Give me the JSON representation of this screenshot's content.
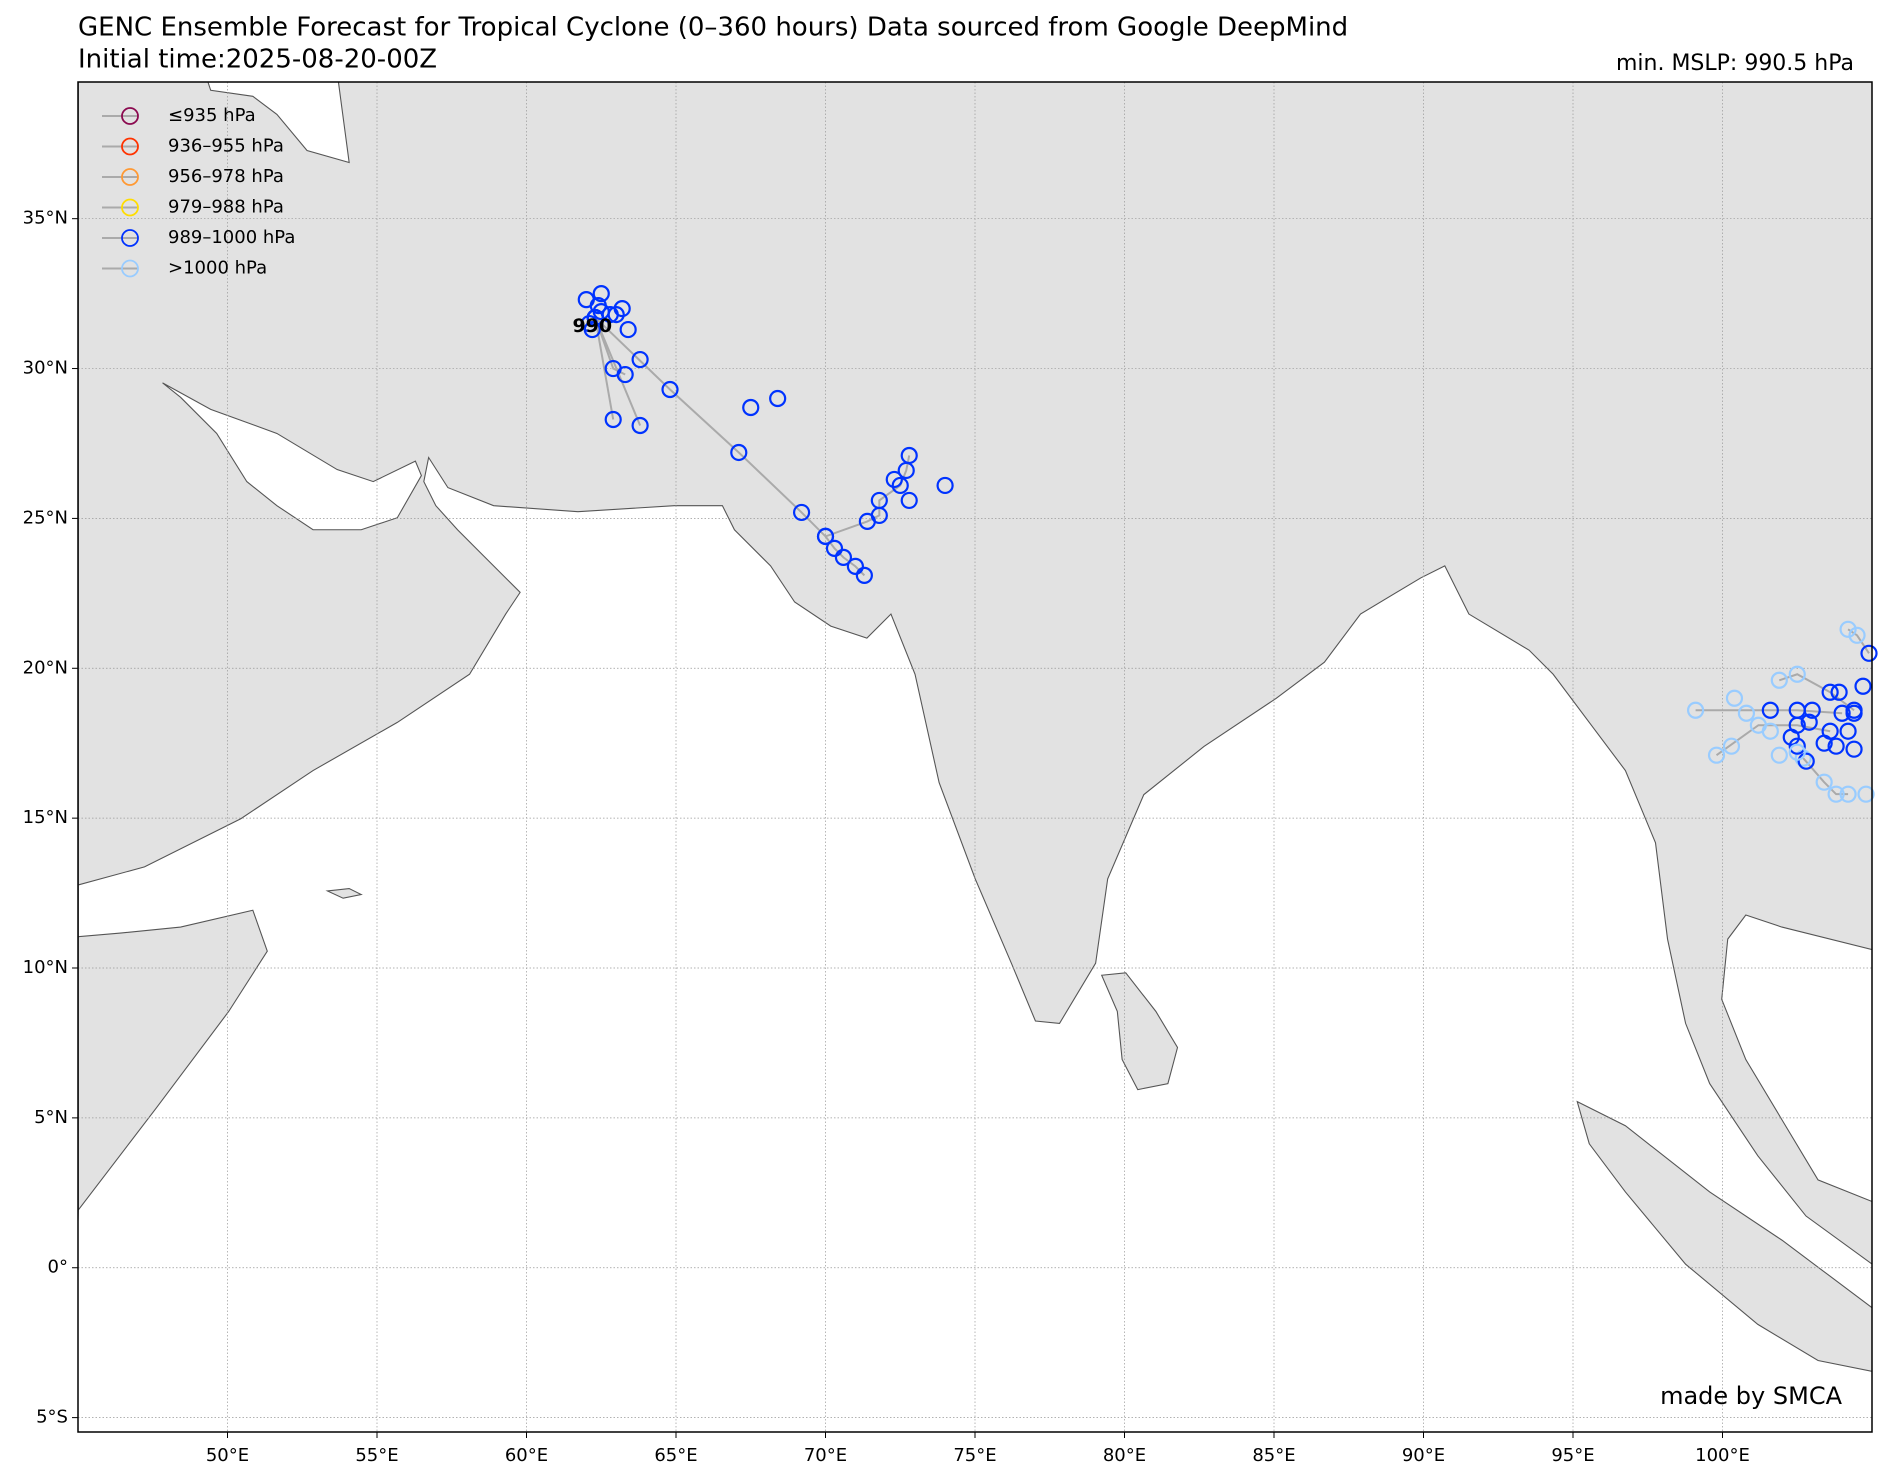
{
  "chart_data": {
    "type": "track-map",
    "title": "GENC Ensemble Forecast for Tropical Cyclone (0–360 hours) Data sourced from Google DeepMind",
    "subtitle": "Initial time:2025-08-20-00Z",
    "summary": "min. MSLP: 990.5 hPa",
    "credit": "made by SMCA",
    "xlim": [
      45,
      105
    ],
    "ylim": [
      -5.48,
      39.56
    ],
    "grid": true,
    "xticks": [
      {
        "value": 50,
        "label": "50°E"
      },
      {
        "value": 55,
        "label": "55°E"
      },
      {
        "value": 60,
        "label": "60°E"
      },
      {
        "value": 65,
        "label": "65°E"
      },
      {
        "value": 70,
        "label": "70°E"
      },
      {
        "value": 75,
        "label": "75°E"
      },
      {
        "value": 80,
        "label": "80°E"
      },
      {
        "value": 85,
        "label": "85°E"
      },
      {
        "value": 90,
        "label": "90°E"
      },
      {
        "value": 95,
        "label": "95°E"
      },
      {
        "value": 100,
        "label": "100°E"
      }
    ],
    "yticks": [
      {
        "value": -5,
        "label": "5°S"
      },
      {
        "value": 0,
        "label": "0°"
      },
      {
        "value": 5,
        "label": "5°N"
      },
      {
        "value": 10,
        "label": "10°N"
      },
      {
        "value": 15,
        "label": "15°N"
      },
      {
        "value": 20,
        "label": "20°N"
      },
      {
        "value": 25,
        "label": "25°N"
      },
      {
        "value": 30,
        "label": "30°N"
      },
      {
        "value": 35,
        "label": "35°N"
      }
    ],
    "legend": "upper left",
    "levels": [
      {
        "name": "≤935 hPa",
        "color": "#8b0a50"
      },
      {
        "name": "936–955 hPa",
        "color": "#ff3300"
      },
      {
        "name": "956–978 hPa",
        "color": "#ff9933"
      },
      {
        "name": "979–988 hPa",
        "color": "#ffdd00"
      },
      {
        "name": "989–1000 hPa",
        "color": "#0033ff"
      },
      {
        "name": ">1000 hPa",
        "color": "#99ccff"
      }
    ],
    "tracks": [
      {
        "x": [
          62.3,
          64.8,
          67.1,
          69.2,
          70.0,
          71.4,
          71.8,
          71.8,
          72.5,
          72.7,
          72.8
        ],
        "y": [
          31.7,
          29.3,
          27.2,
          25.2,
          24.4,
          24.9,
          25.1,
          25.6,
          26.1,
          26.6,
          27.1
        ],
        "level": [
          4,
          4,
          4,
          4,
          4,
          4,
          4,
          4,
          4,
          4,
          4
        ]
      },
      {
        "x": [
          62.3,
          62.9
        ],
        "y": [
          31.7,
          28.3
        ],
        "level": [
          4,
          4
        ]
      },
      {
        "x": [
          62.3,
          63.8
        ],
        "y": [
          31.7,
          28.1
        ],
        "level": [
          4,
          4
        ]
      },
      {
        "x": [
          62.3,
          62.9,
          63.3
        ],
        "y": [
          31.7,
          30.0,
          29.8
        ],
        "level": [
          4,
          4,
          4
        ]
      },
      {
        "x": [
          70.0,
          70.3,
          70.6,
          71.0,
          71.3
        ],
        "y": [
          24.4,
          24.0,
          23.7,
          23.4,
          23.1
        ],
        "level": [
          4,
          4,
          4,
          4,
          4
        ]
      },
      {
        "x": [
          99.1,
          101.6,
          102.5,
          104.0
        ],
        "y": [
          18.6,
          18.6,
          18.6,
          18.5
        ],
        "level": [
          5,
          4,
          4,
          4
        ]
      },
      {
        "x": [
          99.8,
          101.2,
          102.5,
          103.6
        ],
        "y": [
          17.1,
          18.1,
          18.1,
          17.9
        ],
        "level": [
          5,
          5,
          4,
          4
        ]
      },
      {
        "x": [
          101.9,
          102.5,
          103.6,
          104.4
        ],
        "y": [
          19.6,
          19.8,
          19.2,
          18.6
        ],
        "level": [
          5,
          5,
          4,
          4
        ]
      },
      {
        "x": [
          104.2,
          104.5,
          104.9
        ],
        "y": [
          21.3,
          21.1,
          20.5
        ],
        "level": [
          5,
          5,
          4
        ]
      },
      {
        "x": [
          102.7,
          103.4,
          103.8,
          104.2
        ],
        "y": [
          17.0,
          16.2,
          15.8,
          15.8
        ],
        "level": [
          5,
          5,
          5,
          5
        ]
      }
    ],
    "points": {
      "x": [
        67.5,
        68.4,
        74.0,
        72.3,
        72.8,
        63.8,
        63.4,
        62.0,
        62.5,
        63.2,
        63.0,
        62.2,
        62.5,
        62.8,
        62.1,
        62.4,
        102.9,
        103.0,
        103.9,
        104.7,
        102.8,
        102.3,
        103.4,
        103.8,
        104.4,
        104.2,
        102.5,
        104.4,
        100.4,
        100.8,
        100.3,
        101.9,
        104.8,
        101.6,
        102.5
      ],
      "y": [
        28.7,
        29.0,
        26.1,
        26.3,
        25.6,
        30.3,
        31.3,
        32.3,
        32.5,
        32.0,
        31.8,
        31.3,
        31.9,
        31.8,
        31.5,
        32.1,
        18.2,
        18.6,
        19.2,
        19.4,
        16.9,
        17.7,
        17.5,
        17.4,
        17.3,
        17.9,
        17.4,
        18.5,
        19.0,
        18.5,
        17.4,
        17.1,
        15.8,
        17.9,
        17.2
      ],
      "level": [
        4,
        4,
        4,
        4,
        4,
        4,
        4,
        4,
        4,
        4,
        4,
        4,
        4,
        4,
        4,
        4,
        4,
        4,
        4,
        4,
        4,
        4,
        4,
        4,
        4,
        4,
        4,
        4,
        5,
        5,
        5,
        5,
        5,
        5,
        5
      ]
    },
    "annotations": [
      {
        "text": "990",
        "x": 62.2,
        "y": 31.4
      }
    ]
  }
}
